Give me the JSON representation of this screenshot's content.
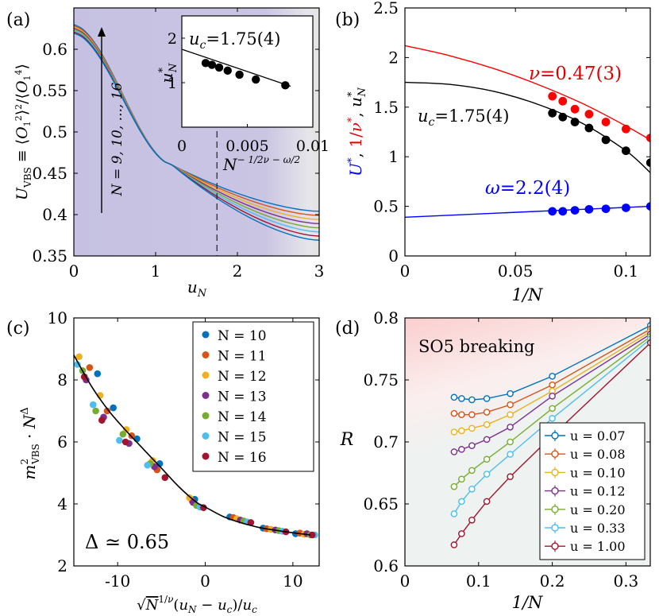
{
  "chart_data": [
    {
      "panel": "(a)",
      "type": "line",
      "xlabel": "u_N",
      "ylabel": "U_VBS ≡ ⟨O_1^2⟩^2/⟨O_1^4⟩",
      "xlim": [
        0,
        3
      ],
      "ylim": [
        0.35,
        0.65
      ],
      "xticks": [
        "0",
        "1",
        "2",
        "3"
      ],
      "yticks": [
        "0.35",
        "0.4",
        "0.45",
        "0.5",
        "0.55",
        "0.6"
      ],
      "crossing_x": 1.75,
      "arrow_label": "N = 9, 10, ..., 16",
      "series": [
        {
          "name": "N=9",
          "color": "#0072BD",
          "values": [
            0.63,
            0.505,
            0.46,
            0.404
          ]
        },
        {
          "name": "N=10",
          "color": "#D95319",
          "values": [
            0.6285,
            0.5012,
            0.46,
            0.399
          ]
        },
        {
          "name": "N=11",
          "color": "#EDB120",
          "values": [
            0.627,
            0.4975,
            0.46,
            0.394
          ]
        },
        {
          "name": "N=12",
          "color": "#7E2F8E",
          "values": [
            0.6255,
            0.4937,
            0.46,
            0.389
          ]
        },
        {
          "name": "N=13",
          "color": "#77AC30",
          "values": [
            0.624,
            0.49,
            0.46,
            0.384
          ]
        },
        {
          "name": "N=14",
          "color": "#4DBEEE",
          "values": [
            0.6225,
            0.4862,
            0.46,
            0.379
          ]
        },
        {
          "name": "N=15",
          "color": "#A2142F",
          "values": [
            0.621,
            0.4825,
            0.46,
            0.374
          ]
        },
        {
          "name": "N=16",
          "color": "#0072BD",
          "values": [
            0.6195,
            0.4787,
            0.46,
            0.369
          ]
        }
      ],
      "inset": {
        "ylabel": "u*_N",
        "xlabel": "N^(-1/2ν - ω/2)",
        "xlim": [
          0,
          0.01
        ],
        "ylim": [
          0,
          2.5
        ],
        "xticks": [
          "0",
          "0.005",
          "0.01"
        ],
        "yticks": [
          "1",
          "2"
        ],
        "annotation": "u_c=1.75(4)",
        "points": [
          {
            "x": 0.00182,
            "y": 1.44
          },
          {
            "x": 0.0023,
            "y": 1.4
          },
          {
            "x": 0.00285,
            "y": 1.34
          },
          {
            "x": 0.0035,
            "y": 1.27
          },
          {
            "x": 0.0044,
            "y": 1.18
          },
          {
            "x": 0.00565,
            "y": 1.07
          },
          {
            "x": 0.0079,
            "y": 0.94
          }
        ],
        "fit": {
          "intercept": 1.75,
          "slope": -100
        }
      }
    },
    {
      "panel": "(b)",
      "type": "line",
      "xlabel": "1/N",
      "ylabel": "U*, 1/ν*, u*_N",
      "ylabel_colors": [
        "#0000FF",
        "#E00000",
        "#000000"
      ],
      "xlim": [
        0,
        0.111
      ],
      "ylim": [
        0,
        2.5
      ],
      "xticks": [
        "0",
        "0.05",
        "0.1"
      ],
      "yticks": [
        "0",
        "0.5",
        "1",
        "1.5",
        "2",
        "2.5"
      ],
      "series": [
        {
          "name": "1/ν*",
          "color": "#FF0000",
          "annotation": "ν=0.47(3)",
          "x": [
            0.0667,
            0.0714,
            0.0769,
            0.0833,
            0.0909,
            0.1,
            0.1111
          ],
          "y": [
            1.61,
            1.56,
            1.48,
            1.43,
            1.35,
            1.28,
            1.19
          ],
          "fit_x": [
            0,
            0.02,
            0.04,
            0.06,
            0.08,
            0.1,
            0.111
          ],
          "fit_y": [
            2.12,
            2.02,
            1.89,
            1.73,
            1.54,
            1.31,
            1.17
          ]
        },
        {
          "name": "u*_N",
          "color": "#000000",
          "annotation": "u_c=1.75(4)",
          "x": [
            0.0667,
            0.0714,
            0.0769,
            0.0833,
            0.0909,
            0.1,
            0.1111
          ],
          "y": [
            1.44,
            1.4,
            1.35,
            1.29,
            1.17,
            1.06,
            0.94
          ],
          "fit_x": [
            0,
            0.02,
            0.04,
            0.06,
            0.08,
            0.1,
            0.111
          ],
          "fit_y": [
            1.75,
            1.73,
            1.66,
            1.53,
            1.34,
            1.06,
            0.84
          ]
        },
        {
          "name": "U*",
          "color": "#0000FF",
          "annotation": "ω=2.2(4)",
          "x": [
            0.0667,
            0.0714,
            0.0769,
            0.0833,
            0.0909,
            0.1,
            0.1111
          ],
          "y": [
            0.45,
            0.45,
            0.46,
            0.47,
            0.475,
            0.485,
            0.5
          ],
          "fit_x": [
            0,
            0.111
          ],
          "fit_y": [
            0.39,
            0.5
          ]
        }
      ]
    },
    {
      "panel": "(c)",
      "type": "scatter",
      "xlabel": "√N^(1/ν) (u_N − u_c)/u_c",
      "ylabel": "m²_VBS · N^Δ",
      "xlim": [
        -15,
        13
      ],
      "ylim": [
        2,
        10
      ],
      "xticks": [
        "-10",
        "0",
        "10"
      ],
      "yticks": [
        "2",
        "4",
        "6",
        "8",
        "10"
      ],
      "annotation": "Δ ≃ 0.65",
      "fit": {
        "x": [
          -15,
          -13,
          -11,
          -9,
          -7,
          -5,
          -3,
          -1,
          0,
          2,
          4,
          6,
          8,
          10,
          12
        ],
        "y": [
          8.8,
          7.8,
          7.0,
          6.35,
          5.75,
          5.15,
          4.55,
          4.05,
          3.9,
          3.6,
          3.4,
          3.25,
          3.15,
          3.07,
          3.0
        ]
      },
      "series": [
        {
          "name": "N = 10",
          "color": "#0072BD",
          "x": [
            -12.3,
            -10.5,
            -7.8,
            -5.2,
            -1.2,
            2.8,
            6.6,
            10.3
          ],
          "y": [
            8.2,
            7.1,
            6.1,
            5.3,
            4.15,
            3.58,
            3.22,
            3.04
          ]
        },
        {
          "name": "N = 11",
          "color": "#D95319",
          "x": [
            -13.2,
            -11.2,
            -8.4,
            -5.5,
            -1.5,
            3.2,
            7.0,
            10.8
          ],
          "y": [
            8.4,
            7.0,
            6.2,
            5.1,
            4.1,
            3.56,
            3.2,
            3.06
          ]
        },
        {
          "name": "N = 12",
          "color": "#EDB120",
          "x": [
            -14.4,
            -12.0,
            -9.0,
            -6.0,
            -1.8,
            3.6,
            7.5,
            11.3
          ],
          "y": [
            8.75,
            7.5,
            6.4,
            5.4,
            4.2,
            3.52,
            3.18,
            3.02
          ]
        },
        {
          "name": "N = 13",
          "color": "#7E2F8E",
          "x": [
            -13.6,
            -11.6,
            -8.7,
            -5.8,
            -1.4,
            4.0,
            8.0,
            11.6
          ],
          "y": [
            8.0,
            6.8,
            5.95,
            5.2,
            4.05,
            3.48,
            3.16,
            3.04
          ]
        },
        {
          "name": "N = 14",
          "color": "#77AC30",
          "x": [
            -14.0,
            -12.5,
            -9.4,
            -6.3,
            -1.0,
            4.4,
            8.4,
            12.0
          ],
          "y": [
            8.3,
            7.0,
            6.25,
            5.3,
            3.95,
            3.45,
            3.14,
            3.0
          ]
        },
        {
          "name": "N = 15",
          "color": "#4DBEEE",
          "x": [
            -14.6,
            -12.8,
            -9.8,
            -6.6,
            -0.6,
            4.8,
            8.8,
            12.5
          ],
          "y": [
            8.5,
            7.2,
            6.05,
            5.25,
            3.9,
            3.42,
            3.12,
            3.0
          ]
        },
        {
          "name": "N = 16",
          "color": "#A2142F",
          "x": [
            -13.8,
            -11.8,
            -9.1,
            -4.6,
            -0.2,
            5.2,
            9.2,
            12.2
          ],
          "y": [
            8.1,
            6.7,
            6.0,
            4.85,
            3.88,
            3.4,
            3.1,
            3.0
          ]
        }
      ]
    },
    {
      "panel": "(d)",
      "type": "line",
      "xlabel": "1/N",
      "ylabel": "R",
      "xlim": [
        0,
        0.333
      ],
      "ylim": [
        0.6,
        0.8
      ],
      "xticks": [
        "0",
        "0.1",
        "0.2",
        "0.3"
      ],
      "yticks": [
        "0.6",
        "0.65",
        "0.7",
        "0.75",
        "0.8"
      ],
      "annotation": "SO5 breaking",
      "x": [
        0.0667,
        0.0769,
        0.0909,
        0.1111,
        0.1429,
        0.2,
        0.3333
      ],
      "series": [
        {
          "name": "u = 0.07",
          "color": "#0072BD",
          "values": [
            0.736,
            0.735,
            0.734,
            0.735,
            0.739,
            0.753,
            0.794
          ]
        },
        {
          "name": "u = 0.08",
          "color": "#D95319",
          "values": [
            0.723,
            0.722,
            0.722,
            0.724,
            0.73,
            0.746,
            0.791
          ]
        },
        {
          "name": "u = 0.10",
          "color": "#EDB120",
          "values": [
            0.708,
            0.709,
            0.711,
            0.714,
            0.722,
            0.741,
            0.789
          ]
        },
        {
          "name": "u = 0.12",
          "color": "#7E2F8E",
          "values": [
            0.692,
            0.694,
            0.697,
            0.702,
            0.712,
            0.737,
            0.787
          ]
        },
        {
          "name": "u = 0.20",
          "color": "#77AC30",
          "values": [
            0.664,
            0.67,
            0.677,
            0.686,
            0.7,
            0.727,
            0.785
          ]
        },
        {
          "name": "u = 0.33",
          "color": "#4DBEEE",
          "values": [
            0.642,
            0.652,
            0.662,
            0.674,
            0.69,
            0.719,
            0.783
          ]
        },
        {
          "name": "u = 1.00",
          "color": "#A2142F",
          "values": [
            0.617,
            0.626,
            0.637,
            0.652,
            0.672,
            0.705,
            0.78
          ]
        }
      ]
    }
  ]
}
